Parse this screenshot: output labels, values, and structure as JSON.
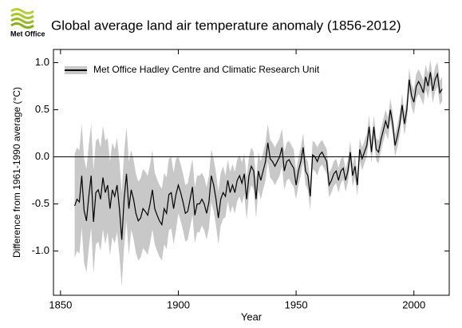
{
  "logo_text": "Met Office",
  "chart_data": {
    "type": "line_band",
    "title": "Global average land air temperature anomaly (1856-2012)",
    "xlabel": "Year",
    "ylabel": "Difference from 1961-1990 average (°C)",
    "xlim": [
      1847,
      2015
    ],
    "ylim": [
      -1.47,
      1.14
    ],
    "xticks": [
      1850,
      1900,
      1950,
      2000
    ],
    "yticks": [
      {
        "value": -1,
        "label": "-1.0"
      },
      -0.5,
      {
        "value": 0,
        "label": "0.0"
      },
      0.5,
      {
        "value": 1,
        "label": "1.0"
      }
    ],
    "reference_line": 0,
    "legend": "upper left",
    "x": [
      1856,
      1857,
      1858,
      1859,
      1860,
      1861,
      1862,
      1863,
      1864,
      1865,
      1866,
      1867,
      1868,
      1869,
      1870,
      1871,
      1872,
      1873,
      1874,
      1875,
      1876,
      1877,
      1878,
      1879,
      1880,
      1881,
      1882,
      1883,
      1884,
      1885,
      1886,
      1887,
      1888,
      1889,
      1890,
      1891,
      1892,
      1893,
      1894,
      1895,
      1896,
      1897,
      1898,
      1899,
      1900,
      1901,
      1902,
      1903,
      1904,
      1905,
      1906,
      1907,
      1908,
      1909,
      1910,
      1911,
      1912,
      1913,
      1914,
      1915,
      1916,
      1917,
      1918,
      1919,
      1920,
      1921,
      1922,
      1923,
      1924,
      1925,
      1926,
      1927,
      1928,
      1929,
      1930,
      1931,
      1932,
      1933,
      1934,
      1935,
      1936,
      1937,
      1938,
      1939,
      1940,
      1941,
      1942,
      1943,
      1944,
      1945,
      1946,
      1947,
      1948,
      1949,
      1950,
      1951,
      1952,
      1953,
      1954,
      1955,
      1956,
      1957,
      1958,
      1959,
      1960,
      1961,
      1962,
      1963,
      1964,
      1965,
      1966,
      1967,
      1968,
      1969,
      1970,
      1971,
      1972,
      1973,
      1974,
      1975,
      1976,
      1977,
      1978,
      1979,
      1980,
      1981,
      1982,
      1983,
      1984,
      1985,
      1986,
      1987,
      1988,
      1989,
      1990,
      1991,
      1992,
      1993,
      1994,
      1995,
      1996,
      1997,
      1998,
      1999,
      2000,
      2001,
      2002,
      2003,
      2004,
      2005,
      2006,
      2007,
      2008,
      2009,
      2010,
      2011,
      2012
    ],
    "series": [
      {
        "name": "Met Office Hadley Centre and Climatic Research Unit",
        "color": "#000000",
        "band_color": "#c8c8c8",
        "values": [
          -0.52,
          -0.45,
          -0.48,
          -0.2,
          -0.57,
          -0.68,
          -0.42,
          -0.2,
          -0.69,
          -0.38,
          -0.35,
          -0.45,
          -0.22,
          -0.38,
          -0.3,
          -0.55,
          -0.35,
          -0.42,
          -0.3,
          -0.55,
          -0.88,
          -0.45,
          -0.18,
          -0.55,
          -0.35,
          -0.45,
          -0.6,
          -0.68,
          -0.65,
          -0.55,
          -0.58,
          -0.62,
          -0.5,
          -0.35,
          -0.55,
          -0.62,
          -0.68,
          -0.72,
          -0.55,
          -0.6,
          -0.4,
          -0.38,
          -0.55,
          -0.4,
          -0.3,
          -0.38,
          -0.48,
          -0.6,
          -0.58,
          -0.45,
          -0.32,
          -0.62,
          -0.5,
          -0.5,
          -0.45,
          -0.5,
          -0.6,
          -0.48,
          -0.2,
          -0.3,
          -0.45,
          -0.65,
          -0.45,
          -0.38,
          -0.42,
          -0.25,
          -0.38,
          -0.3,
          -0.38,
          -0.25,
          -0.2,
          -0.28,
          -0.18,
          -0.45,
          -0.2,
          -0.1,
          -0.15,
          -0.45,
          -0.15,
          -0.25,
          -0.15,
          -0.05,
          0.15,
          -0.02,
          -0.05,
          -0.1,
          -0.05,
          0.0,
          0.1,
          -0.15,
          -0.05,
          -0.03,
          -0.08,
          -0.12,
          -0.3,
          -0.15,
          -0.05,
          0.1,
          -0.15,
          -0.2,
          -0.42,
          0.02,
          0.0,
          -0.05,
          0.02,
          0.05,
          0.0,
          -0.05,
          -0.3,
          -0.25,
          -0.18,
          -0.15,
          -0.25,
          -0.15,
          -0.12,
          -0.25,
          -0.15,
          0.05,
          -0.2,
          -0.1,
          -0.3,
          0.08,
          -0.02,
          0.05,
          0.12,
          0.32,
          0.05,
          0.32,
          0.08,
          0.05,
          0.18,
          0.28,
          0.38,
          0.3,
          0.5,
          0.35,
          0.12,
          0.22,
          0.35,
          0.55,
          0.35,
          0.5,
          0.82,
          0.65,
          0.58,
          0.75,
          0.8,
          0.75,
          0.68,
          0.85,
          0.75,
          0.9,
          0.7,
          0.82,
          0.88,
          0.68,
          0.72
        ],
        "uncertainty": [
          0.55,
          0.55,
          0.55,
          0.55,
          0.55,
          0.55,
          0.55,
          0.55,
          0.55,
          0.55,
          0.55,
          0.55,
          0.55,
          0.55,
          0.5,
          0.5,
          0.5,
          0.5,
          0.5,
          0.5,
          0.5,
          0.5,
          0.5,
          0.5,
          0.42,
          0.42,
          0.42,
          0.42,
          0.42,
          0.42,
          0.42,
          0.42,
          0.42,
          0.42,
          0.38,
          0.38,
          0.38,
          0.38,
          0.38,
          0.38,
          0.38,
          0.38,
          0.38,
          0.38,
          0.3,
          0.3,
          0.3,
          0.3,
          0.3,
          0.3,
          0.3,
          0.3,
          0.3,
          0.3,
          0.28,
          0.28,
          0.28,
          0.28,
          0.28,
          0.28,
          0.28,
          0.28,
          0.28,
          0.28,
          0.22,
          0.22,
          0.22,
          0.22,
          0.22,
          0.22,
          0.22,
          0.22,
          0.22,
          0.22,
          0.2,
          0.2,
          0.2,
          0.2,
          0.2,
          0.2,
          0.2,
          0.2,
          0.2,
          0.2,
          0.2,
          0.2,
          0.2,
          0.2,
          0.2,
          0.2,
          0.2,
          0.2,
          0.2,
          0.2,
          0.15,
          0.15,
          0.15,
          0.15,
          0.15,
          0.15,
          0.15,
          0.15,
          0.15,
          0.15,
          0.13,
          0.13,
          0.13,
          0.13,
          0.13,
          0.13,
          0.13,
          0.13,
          0.13,
          0.13,
          0.12,
          0.12,
          0.12,
          0.12,
          0.12,
          0.12,
          0.12,
          0.12,
          0.12,
          0.12,
          0.12,
          0.12,
          0.12,
          0.12,
          0.12,
          0.12,
          0.12,
          0.12,
          0.12,
          0.12,
          0.12,
          0.12,
          0.12,
          0.12,
          0.12,
          0.12,
          0.12,
          0.12,
          0.12,
          0.12,
          0.13,
          0.13,
          0.13,
          0.13,
          0.13,
          0.13,
          0.13,
          0.13,
          0.13,
          0.13,
          0.13,
          0.13,
          0.13
        ]
      }
    ]
  }
}
